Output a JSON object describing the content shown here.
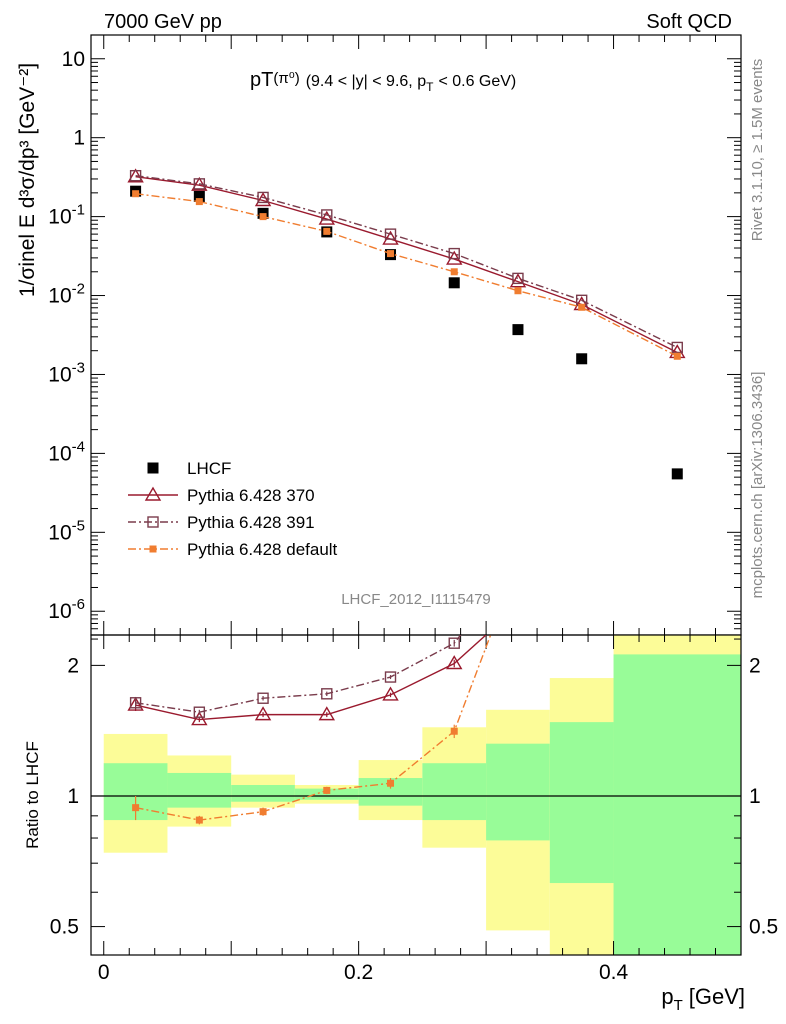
{
  "header": {
    "left": "7000 GeV pp",
    "right": "Soft QCD",
    "side_top": "Rivet 3.1.10, ≥ 1.5M events",
    "side_bottom": "mcplots.cern.ch [arXiv:1306.3436]",
    "analysis_id": "LHCF_2012_I1115479"
  },
  "chart_data": [
    {
      "type": "scatter",
      "title_main": "pT",
      "title_sup": "(π⁰)",
      "title_rest": "(9.4 < |y| < 9.6, p",
      "title_sub": "T",
      "title_end": "< 0.6 GeV)",
      "ylabel": "1/σinel E d³σ/dp³ [GeV⁻²]",
      "y_scale": "log",
      "ylim": [
        5e-07,
        20
      ],
      "xlim": [
        -0.01,
        0.5
      ],
      "y_ticks": [
        {
          "v": 1e-06,
          "base": "10",
          "exp": "-6"
        },
        {
          "v": 1e-05,
          "base": "10",
          "exp": "-5"
        },
        {
          "v": 0.0001,
          "base": "10",
          "exp": "-4"
        },
        {
          "v": 0.001,
          "base": "10",
          "exp": "-3"
        },
        {
          "v": 0.01,
          "base": "10",
          "exp": "-2"
        },
        {
          "v": 0.1,
          "base": "10",
          "exp": "-1"
        },
        {
          "v": 1,
          "base": "1",
          "exp": ""
        },
        {
          "v": 10,
          "base": "10",
          "exp": ""
        }
      ],
      "legend_position": "lower-left",
      "series": [
        {
          "name": "LHCF",
          "marker": "filled-square",
          "color": "#000000",
          "x": [
            0.025,
            0.075,
            0.125,
            0.175,
            0.225,
            0.275,
            0.325,
            0.375,
            0.45
          ],
          "y": [
            0.21,
            0.18,
            0.11,
            0.064,
            0.033,
            0.0145,
            0.0037,
            0.00158,
            5.5e-05
          ]
        },
        {
          "name": "Pythia 6.428 370",
          "marker": "open-triangle",
          "color": "#9a1a2e",
          "line": "solid",
          "x": [
            0.025,
            0.075,
            0.125,
            0.175,
            0.225,
            0.275,
            0.325,
            0.375,
            0.45
          ],
          "y": [
            0.32,
            0.25,
            0.16,
            0.093,
            0.052,
            0.029,
            0.015,
            0.0077,
            0.0019
          ]
        },
        {
          "name": "Pythia 6.428 391",
          "marker": "open-square",
          "color": "#7a3c4c",
          "line": "dash-dot",
          "x": [
            0.025,
            0.075,
            0.125,
            0.175,
            0.225,
            0.275,
            0.325,
            0.375,
            0.45
          ],
          "y": [
            0.33,
            0.26,
            0.175,
            0.105,
            0.06,
            0.034,
            0.0165,
            0.0087,
            0.0022
          ]
        },
        {
          "name": "Pythia 6.428 default",
          "marker": "filled-small-square",
          "color": "#f07d30",
          "line": "dash-dot",
          "x": [
            0.025,
            0.075,
            0.125,
            0.175,
            0.225,
            0.275,
            0.325,
            0.375,
            0.45
          ],
          "y": [
            0.195,
            0.155,
            0.1,
            0.065,
            0.034,
            0.02,
            0.0115,
            0.0071,
            0.0017
          ]
        }
      ]
    },
    {
      "type": "scatter",
      "ylabel": "Ratio to LHCF",
      "xlabel_main": "p",
      "xlabel_sub": "T",
      "xlabel_unit": "[GeV]",
      "y_scale": "log",
      "ylim": [
        0.43,
        2.35
      ],
      "xlim": [
        -0.01,
        0.5
      ],
      "x_ticks": [
        {
          "v": 0,
          "label": "0"
        },
        {
          "v": 0.2,
          "label": "0.2"
        },
        {
          "v": 0.4,
          "label": "0.4"
        }
      ],
      "y_ticks": [
        {
          "v": 0.5,
          "label": "0.5"
        },
        {
          "v": 1,
          "label": "1"
        },
        {
          "v": 2,
          "label": "2"
        }
      ],
      "reference_line": 1,
      "uncertainty_bands": {
        "bins": [
          [
            0.0,
            0.05
          ],
          [
            0.05,
            0.1
          ],
          [
            0.1,
            0.15
          ],
          [
            0.15,
            0.2
          ],
          [
            0.2,
            0.25
          ],
          [
            0.25,
            0.3
          ],
          [
            0.3,
            0.35
          ],
          [
            0.35,
            0.4
          ],
          [
            0.4,
            0.5
          ]
        ],
        "stat_lo": [
          0.88,
          0.94,
          0.97,
          0.98,
          0.95,
          0.88,
          0.79,
          0.63,
          0.38
        ],
        "stat_hi": [
          1.19,
          1.13,
          1.06,
          1.04,
          1.1,
          1.19,
          1.32,
          1.48,
          2.12
        ],
        "total_lo": [
          0.74,
          0.85,
          0.94,
          0.96,
          0.88,
          0.76,
          0.49,
          0.3,
          0.3
        ],
        "total_hi": [
          1.39,
          1.24,
          1.12,
          1.06,
          1.21,
          1.44,
          1.58,
          1.87,
          2.5
        ],
        "stat_color": "#98fc98",
        "total_color": "#fcfc98"
      },
      "series": [
        {
          "name": "Pythia 6.428 370",
          "color": "#9a1a2e",
          "x": [
            0.025,
            0.075,
            0.125,
            0.175,
            0.225,
            0.275,
            0.31
          ],
          "y": [
            1.62,
            1.5,
            1.54,
            1.54,
            1.71,
            2.02,
            2.5
          ],
          "err": [
            0.05,
            0.02,
            0.02,
            0.02,
            0.02,
            0.04,
            0
          ]
        },
        {
          "name": "Pythia 6.428 391",
          "color": "#7a3c4c",
          "x": [
            0.025,
            0.075,
            0.125,
            0.175,
            0.225,
            0.275,
            0.287
          ],
          "y": [
            1.64,
            1.56,
            1.68,
            1.72,
            1.88,
            2.25,
            2.5
          ],
          "err": [
            0.05,
            0.02,
            0.02,
            0.02,
            0.02,
            0.04,
            0
          ]
        },
        {
          "name": "Pythia 6.428 default",
          "color": "#f07d30",
          "x": [
            0.025,
            0.075,
            0.125,
            0.175,
            0.225,
            0.275,
            0.307
          ],
          "y": [
            0.94,
            0.88,
            0.92,
            1.03,
            1.07,
            1.41,
            2.5
          ],
          "err": [
            0.06,
            0.02,
            0.02,
            0.02,
            0.03,
            0.05,
            0
          ]
        }
      ]
    }
  ]
}
